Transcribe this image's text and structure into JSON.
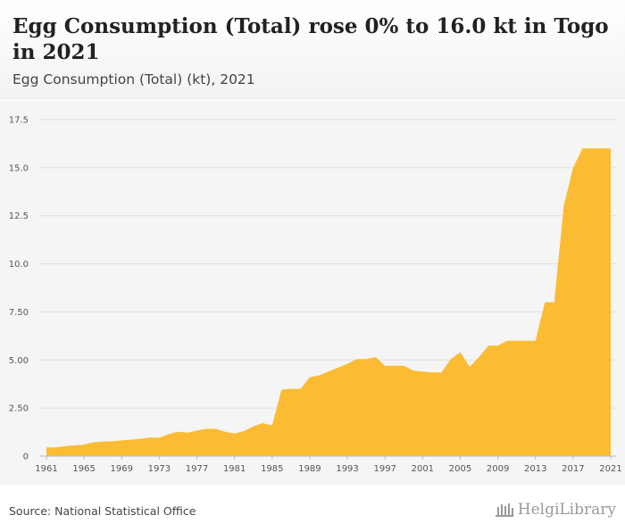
{
  "header": {
    "title": "Egg Consumption (Total) rose 0% to 16.0 kt in Togo in 2021",
    "subtitle": "Egg Consumption (Total) (kt), 2021"
  },
  "footer": {
    "source": "Source: National Statistical Office",
    "logo_text": "HelgiLibrary"
  },
  "colors": {
    "area": "#fbbc33",
    "grid": "#dddddd",
    "plot_bg": "#f5f5f5"
  },
  "chart_data": {
    "type": "area",
    "title": "Egg Consumption (Total) (kt), 2021",
    "xlabel": "",
    "ylabel": "",
    "ylim": [
      0,
      17.5
    ],
    "y_ticks": [
      "0",
      "2.50",
      "5.00",
      "7.50",
      "10.0",
      "12.5",
      "15.0",
      "17.5"
    ],
    "x_ticks": [
      "1961",
      "1965",
      "1969",
      "1973",
      "1977",
      "1981",
      "1985",
      "1989",
      "1993",
      "1997",
      "2001",
      "2005",
      "2009",
      "2013",
      "2017",
      "2021"
    ],
    "x": [
      1961,
      1962,
      1963,
      1964,
      1965,
      1966,
      1967,
      1968,
      1969,
      1970,
      1971,
      1972,
      1973,
      1974,
      1975,
      1976,
      1977,
      1978,
      1979,
      1980,
      1981,
      1982,
      1983,
      1984,
      1985,
      1986,
      1987,
      1988,
      1989,
      1990,
      1991,
      1992,
      1993,
      1994,
      1995,
      1996,
      1997,
      1998,
      1999,
      2000,
      2001,
      2002,
      2003,
      2004,
      2005,
      2006,
      2007,
      2008,
      2009,
      2010,
      2011,
      2012,
      2013,
      2014,
      2015,
      2016,
      2017,
      2018,
      2019,
      2020,
      2021
    ],
    "values": [
      0.45,
      0.45,
      0.52,
      0.56,
      0.6,
      0.72,
      0.76,
      0.77,
      0.82,
      0.86,
      0.9,
      0.97,
      0.96,
      1.15,
      1.27,
      1.22,
      1.33,
      1.42,
      1.42,
      1.27,
      1.18,
      1.3,
      1.55,
      1.72,
      1.6,
      3.45,
      3.5,
      3.5,
      4.1,
      4.2,
      4.4,
      4.6,
      4.8,
      5.05,
      5.05,
      5.15,
      4.7,
      4.7,
      4.7,
      4.45,
      4.4,
      4.35,
      4.35,
      5.05,
      5.4,
      4.65,
      5.15,
      5.75,
      5.75,
      6.0,
      6.0,
      6.0,
      6.0,
      8.0,
      8.0,
      13.0,
      15.0,
      16.0,
      16.0,
      16.0,
      16.0
    ]
  }
}
